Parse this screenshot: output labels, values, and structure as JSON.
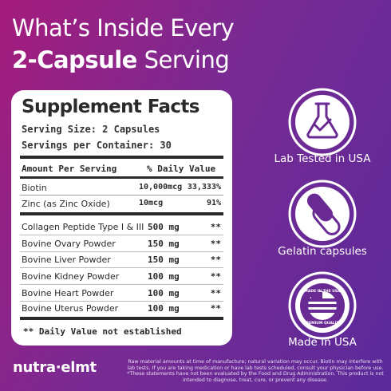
{
  "header": {
    "title_line1": "What’s Inside Every",
    "title_line2_bold": "2-Capsule",
    "title_line2_rest": "Serving"
  },
  "facts": {
    "title": "Supplement Facts",
    "serving_size": "Serving Size: 2 Capsules",
    "servings_per_container": "Servings per Container: 30",
    "columns": [
      "Amount Per Serving",
      "% Daily Value"
    ],
    "rows": [
      [
        "Biotin",
        "10,000mcg",
        "33,333%"
      ],
      [
        "Zinc (as Zinc Oxide)",
        "10mcg",
        "91%"
      ],
      [
        "Collagen Peptide Type I & III",
        "500 mg",
        "**"
      ],
      [
        "Bovine Ovary Powder",
        "150 mg",
        "**"
      ],
      [
        "Bovine Liver Powder",
        "150 mg",
        "**"
      ],
      [
        "Bovine Kidney Powder",
        "100 mg",
        "**"
      ],
      [
        "Bovine Heart Powder",
        "100 mg",
        "**"
      ],
      [
        "Bovine Uterus Powder",
        "100 mg",
        "**"
      ]
    ],
    "footnote": "** Daily Value not established"
  },
  "badges": [
    {
      "label": "Lab Tested in USA"
    },
    {
      "label": "Gelatin capsules"
    },
    {
      "label": "Made In USA",
      "ring_top": "MADE IN THE USA",
      "ring_bottom": "PREMIUM QUALITY"
    }
  ],
  "footer": {
    "logo": "nutra·elmt",
    "disclaimer": [
      "Raw material amounts at time of manufacture; natural variation may occur. Biotin may interfere with",
      "lab tests. If you are taking medication or have lab tests scheduled, consult your physician before use.",
      "*These statements have not been evaluated by the Food and Drug Administration. This product is not",
      "intended to diagnose, treat, cure, or prevent any disease."
    ]
  }
}
